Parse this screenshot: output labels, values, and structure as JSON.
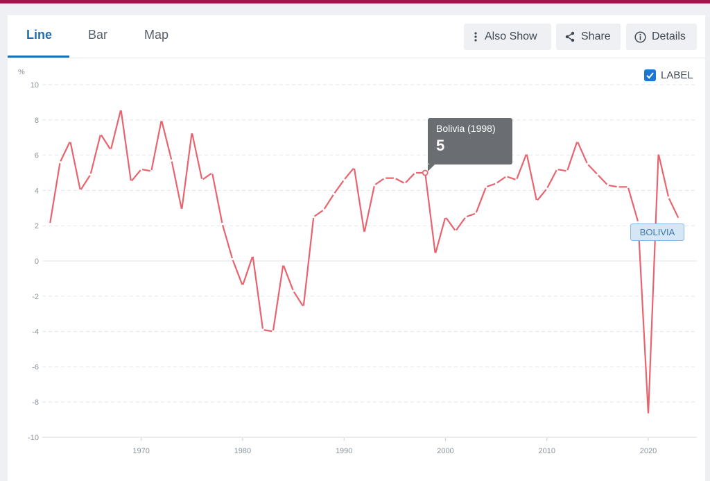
{
  "tabs": [
    {
      "label": "Line",
      "active": true
    },
    {
      "label": "Bar",
      "active": false
    },
    {
      "label": "Map",
      "active": false
    }
  ],
  "toolbar": {
    "also_show": {
      "label": "Also Show",
      "icon": "vertical-dots-icon"
    },
    "share": {
      "label": "Share",
      "icon": "share-icon"
    },
    "details": {
      "label": "Details",
      "icon": "info-icon"
    }
  },
  "label_toggle": {
    "label": "LABEL",
    "checked": true
  },
  "tooltip": {
    "title": "Bolivia (1998)",
    "value": "5"
  },
  "series_label": "BOLIVIA",
  "colors": {
    "line": "#e8636d",
    "accent": "#1d6fb0",
    "topbar": "#a3144a"
  },
  "chart_data": {
    "type": "line",
    "ylabel": "%",
    "ylim": [
      -10,
      10
    ],
    "yticks": [
      "10",
      "8",
      "6",
      "4",
      "2",
      "0",
      "-2",
      "-4",
      "-6",
      "-8",
      "-10"
    ],
    "xticks": [
      "1970",
      "1980",
      "1990",
      "2000",
      "2010",
      "2020"
    ],
    "grid": true,
    "x": [
      1961,
      1962,
      1963,
      1964,
      1965,
      1966,
      1967,
      1968,
      1969,
      1970,
      1971,
      1972,
      1973,
      1974,
      1975,
      1976,
      1977,
      1978,
      1979,
      1980,
      1981,
      1982,
      1983,
      1984,
      1985,
      1986,
      1987,
      1988,
      1989,
      1990,
      1991,
      1992,
      1993,
      1994,
      1995,
      1996,
      1997,
      1998,
      1999,
      2000,
      2001,
      2002,
      2003,
      2004,
      2005,
      2006,
      2007,
      2008,
      2009,
      2010,
      2011,
      2012,
      2013,
      2014,
      2015,
      2016,
      2017,
      2018,
      2019,
      2020,
      2021,
      2022,
      2023
    ],
    "series": [
      {
        "name": "BOLIVIA",
        "values": [
          2.1,
          5.6,
          6.8,
          4.0,
          4.9,
          7.2,
          6.3,
          8.6,
          4.5,
          5.2,
          5.1,
          8.0,
          5.7,
          2.9,
          7.3,
          4.6,
          5.0,
          2.1,
          0.1,
          -1.4,
          0.3,
          -3.9,
          -4.0,
          -0.2,
          -1.7,
          -2.6,
          2.5,
          2.9,
          3.8,
          4.6,
          5.3,
          1.6,
          4.3,
          4.7,
          4.7,
          4.4,
          5.0,
          5.0,
          0.4,
          2.5,
          1.7,
          2.5,
          2.7,
          4.2,
          4.4,
          4.8,
          4.6,
          6.1,
          3.4,
          4.1,
          5.2,
          5.1,
          6.8,
          5.5,
          4.9,
          4.3,
          4.2,
          4.2,
          2.2,
          -8.7,
          6.1,
          3.6,
          2.4
        ]
      }
    ],
    "highlight": {
      "x": 1998,
      "y": 5.0
    }
  }
}
